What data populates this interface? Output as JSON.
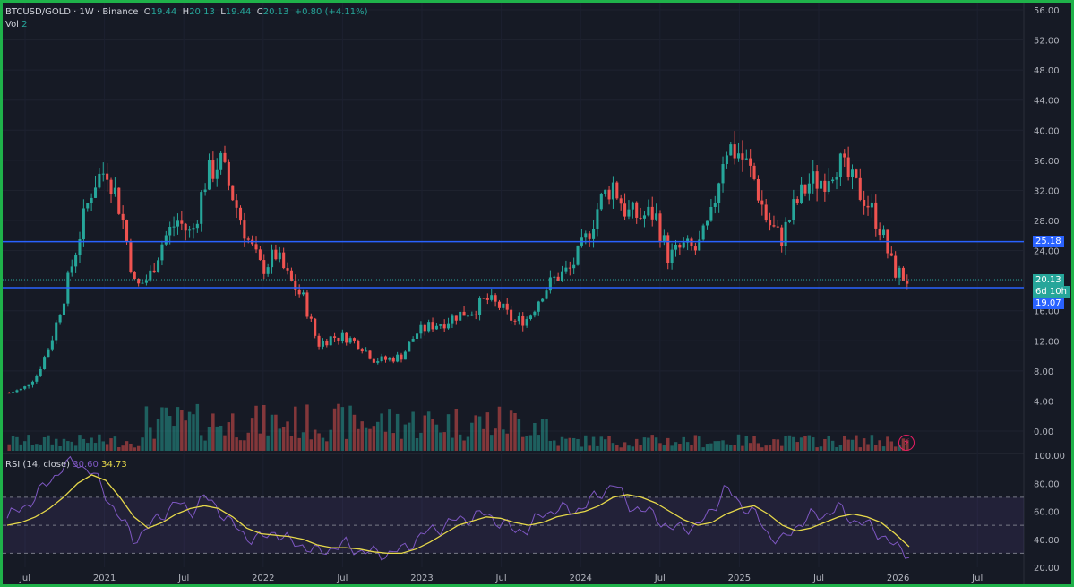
{
  "legend": {
    "symbol": "BTCUSD/GOLD · 1W · Binance",
    "o_label": "O",
    "o": "19.44",
    "h_label": "H",
    "h": "20.13",
    "l_label": "L",
    "l": "19.44",
    "c_label": "C",
    "c": "20.13",
    "change": "+0.80 (+4.11%)",
    "vol_label": "Vol",
    "vol": "2"
  },
  "rsi_legend": {
    "label": "RSI (14, close)",
    "rsi": "30.60",
    "ma": "34.73"
  },
  "price_tags": {
    "upper": "25.18",
    "last": "20.13",
    "countdown": "6d 10h",
    "lower": "19.07"
  },
  "colors": {
    "up": "#26a69a",
    "down": "#ef5350",
    "level": "#2962ff",
    "rsi_line": "#7e57c2",
    "rsi_ma": "#e6d84a",
    "background": "#161a25"
  },
  "icon": "lightning-icon",
  "chart_data": [
    {
      "type": "candlestick",
      "interval": "1W",
      "title": "",
      "x_tick_labels": [
        "Jul",
        "2021",
        "Jul",
        "2022",
        "Jul",
        "2023",
        "Jul",
        "2024",
        "Jul",
        "2025",
        "Jul",
        "2026",
        "Jul"
      ],
      "y_tick_labels": [
        "56.00",
        "52.00",
        "48.00",
        "44.00",
        "40.00",
        "36.00",
        "32.00",
        "28.00",
        "24.00",
        "20.00",
        "16.00",
        "12.00",
        "8.00",
        "4.00",
        "0.00"
      ],
      "ylim": [
        0,
        56
      ],
      "horizontal_levels": [
        25.18,
        19.07
      ],
      "x": [
        "2020-06",
        "2020-08",
        "2020-10",
        "2020-11",
        "2020-12",
        "2021-01",
        "2021-02",
        "2021-03",
        "2021-04",
        "2021-05",
        "2021-06",
        "2021-07",
        "2021-08",
        "2021-09",
        "2021-10",
        "2021-11",
        "2021-12",
        "2022-01",
        "2022-02",
        "2022-03",
        "2022-04",
        "2022-05",
        "2022-06",
        "2022-07",
        "2022-08",
        "2022-09",
        "2022-10",
        "2022-11",
        "2022-12",
        "2023-01",
        "2023-02",
        "2023-03",
        "2023-04",
        "2023-05",
        "2023-06",
        "2023-07",
        "2023-08",
        "2023-09",
        "2023-10",
        "2023-11",
        "2023-12",
        "2024-01",
        "2024-02",
        "2024-03",
        "2024-04",
        "2024-05",
        "2024-06",
        "2024-07",
        "2024-08",
        "2024-09",
        "2024-10",
        "2024-11",
        "2024-12",
        "2025-01",
        "2025-02",
        "2025-03",
        "2025-04",
        "2025-05",
        "2025-06",
        "2025-07",
        "2025-08",
        "2025-09",
        "2025-10",
        "2025-11",
        "2025-12"
      ],
      "close": [
        5.1,
        5.6,
        7.5,
        12.0,
        18.5,
        26.0,
        33.0,
        35.0,
        29.0,
        19.0,
        20.5,
        25.5,
        28.0,
        26.0,
        33.5,
        36.0,
        31.0,
        25.5,
        21.5,
        23.5,
        20.0,
        17.5,
        11.5,
        12.5,
        12.5,
        11.5,
        9.5,
        9.5,
        10.0,
        13.0,
        14.0,
        14.5,
        15.5,
        16.0,
        17.5,
        16.5,
        14.5,
        15.0,
        18.5,
        20.5,
        21.5,
        25.0,
        30.0,
        33.0,
        29.0,
        28.5,
        29.0,
        23.0,
        24.5,
        24.0,
        28.0,
        38.0,
        37.0,
        34.0,
        28.0,
        25.5,
        30.0,
        33.0,
        33.5,
        36.0,
        33.0,
        31.0,
        27.5,
        21.5,
        20.13
      ],
      "volume_ylim": [
        0,
        4
      ],
      "volume_note": "volume sub-pane"
    },
    {
      "type": "line",
      "title": "RSI (14, close)",
      "y_tick_labels": [
        "100.00",
        "80.00",
        "60.00",
        "40.00",
        "20.00"
      ],
      "ylim": [
        20,
        100
      ],
      "bands": [
        70,
        50,
        30
      ],
      "series": [
        {
          "name": "RSI",
          "values": [
            55,
            62,
            70,
            82,
            92,
            95,
            88,
            72,
            55,
            40,
            48,
            58,
            66,
            60,
            70,
            62,
            50,
            42,
            40,
            46,
            38,
            36,
            30,
            34,
            36,
            32,
            30,
            30,
            32,
            40,
            46,
            50,
            54,
            56,
            58,
            52,
            46,
            48,
            58,
            62,
            60,
            64,
            72,
            80,
            66,
            60,
            58,
            46,
            50,
            48,
            62,
            76,
            66,
            58,
            44,
            38,
            50,
            56,
            58,
            62,
            54,
            50,
            44,
            34,
            30.6
          ]
        },
        {
          "name": "RSI-based MA",
          "values": [
            50,
            52,
            56,
            62,
            70,
            80,
            86,
            82,
            70,
            56,
            48,
            52,
            58,
            62,
            64,
            62,
            56,
            48,
            44,
            43,
            42,
            40,
            36,
            34,
            34,
            33,
            31,
            30,
            30,
            33,
            38,
            44,
            50,
            53,
            56,
            55,
            52,
            50,
            52,
            56,
            58,
            60,
            64,
            70,
            72,
            70,
            66,
            60,
            54,
            50,
            52,
            58,
            62,
            64,
            58,
            50,
            46,
            48,
            52,
            56,
            58,
            56,
            52,
            44,
            34.73
          ]
        }
      ]
    }
  ]
}
